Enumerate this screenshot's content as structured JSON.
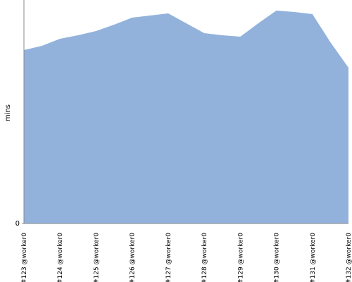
{
  "chart_data": {
    "type": "area",
    "y_label": "mins",
    "categories": [
      "#123 @worker0",
      null,
      "#124 @worker0",
      null,
      "#125 @worker0",
      null,
      "#126 @worker0",
      null,
      "#127 @worker0",
      null,
      "#128 @worker0",
      null,
      "#129 @worker0",
      null,
      "#130 @worker0",
      null,
      "#131 @worker0",
      null,
      "#132 @worker0"
    ],
    "series": [
      {
        "color": "#92b2dc",
        "values": [
          2.46,
          2.52,
          2.62,
          2.67,
          2.73,
          2.82,
          2.92,
          2.95,
          2.98,
          2.84,
          2.7,
          2.67,
          2.65,
          2.84,
          3.02,
          3.0,
          2.97,
          2.57,
          2.21
        ]
      }
    ],
    "ylim": [
      0,
      3.17
    ],
    "yticks": [
      0
    ]
  }
}
